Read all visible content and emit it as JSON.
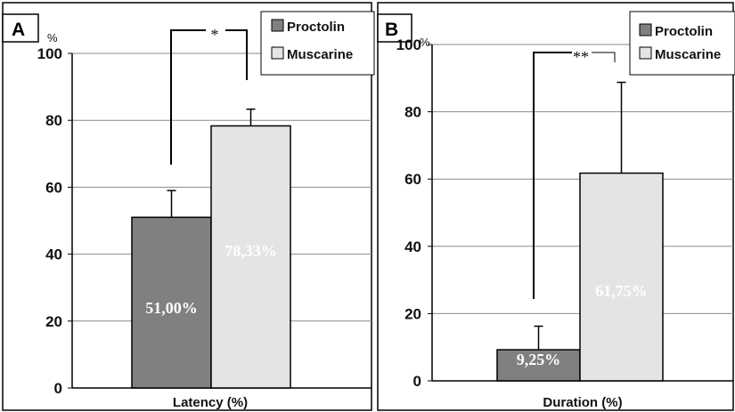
{
  "chart_data": [
    {
      "type": "bar",
      "panel_label": "A",
      "unit_label": "%",
      "xlabel": "Latency (%)",
      "ylim": [
        0,
        100
      ],
      "yticks": [
        0,
        20,
        40,
        60,
        80,
        100
      ],
      "grid": true,
      "legend_position": "top-right",
      "series": [
        {
          "name": "Proctolin",
          "value": 51.0,
          "error": 8,
          "label": "51,00%",
          "color": "#808080"
        },
        {
          "name": "Muscarine",
          "value": 78.33,
          "error": 5,
          "label": "78,33%",
          "color": "#e4e4e4"
        }
      ],
      "significance": "*"
    },
    {
      "type": "bar",
      "panel_label": "B",
      "unit_label": "%",
      "xlabel": "Duration (%)",
      "ylim": [
        0,
        100
      ],
      "yticks": [
        0,
        20,
        40,
        60,
        80,
        100
      ],
      "grid": true,
      "legend_position": "top-right",
      "series": [
        {
          "name": "Proctolin",
          "value": 9.25,
          "error": 7,
          "label": "9,25%",
          "color": "#808080"
        },
        {
          "name": "Muscarine",
          "value": 61.75,
          "error": 27,
          "label": "61,75%",
          "color": "#e4e4e4"
        }
      ],
      "significance": "**"
    }
  ]
}
